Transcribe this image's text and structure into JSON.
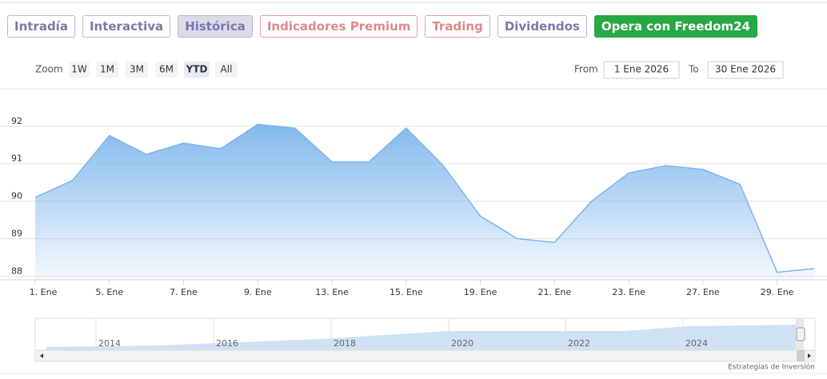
{
  "tabs": [
    "Intradía",
    "Interactiva",
    "Histórica",
    "Indicadores Premium",
    "Trading",
    "Dividendos",
    "Opera con Freedom24"
  ],
  "zoom": {
    "label": "Zoom",
    "buttons": [
      "1W",
      "1M",
      "3M",
      "6M",
      "YTD",
      "All"
    ]
  },
  "range": {
    "from_label": "From",
    "from": "1 Ene 2026",
    "to_label": "To",
    "to": "30 Ene 2026"
  },
  "navigator": {
    "years": [
      "2014",
      "2016",
      "2018",
      "2020",
      "2022",
      "2024"
    ]
  },
  "credit": "Estrategias de Inversión",
  "chart_data": {
    "type": "area",
    "categories": [
      "1. Ene",
      null,
      "5. Ene",
      null,
      "7. Ene",
      null,
      "9. Ene",
      null,
      "13. Ene",
      null,
      "15. Ene",
      null,
      "19. Ene",
      null,
      "21. Ene",
      null,
      "23. Ene",
      null,
      "27. Ene",
      null,
      "29. Ene",
      null
    ],
    "values": [
      90.1,
      90.55,
      91.75,
      91.25,
      91.55,
      91.4,
      92.05,
      91.95,
      91.05,
      91.05,
      91.95,
      90.95,
      89.6,
      89.0,
      88.9,
      90.0,
      90.75,
      90.95,
      90.85,
      90.45,
      88.1,
      88.2
    ],
    "color": "#7cb5ec",
    "ylim": [
      87.9,
      93
    ],
    "yticks": [
      88,
      89,
      90,
      91,
      92
    ],
    "grid": true
  }
}
